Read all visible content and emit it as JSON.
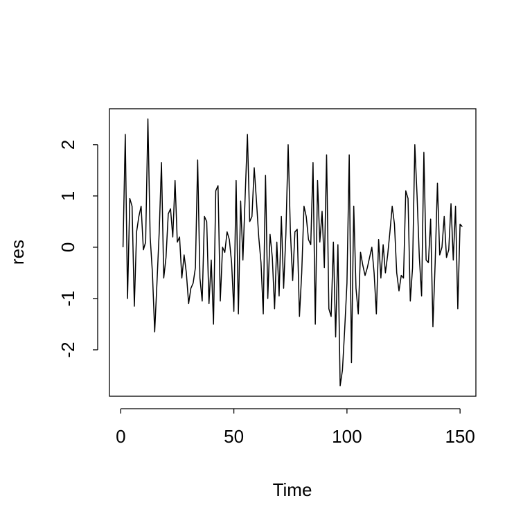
{
  "chart_data": {
    "type": "line",
    "xlabel": "Time",
    "ylabel": "res",
    "color": "#000000",
    "x": [
      1,
      2,
      3,
      4,
      5,
      6,
      7,
      8,
      9,
      10,
      11,
      12,
      13,
      14,
      15,
      16,
      17,
      18,
      19,
      20,
      21,
      22,
      23,
      24,
      25,
      26,
      27,
      28,
      29,
      30,
      31,
      32,
      33,
      34,
      35,
      36,
      37,
      38,
      39,
      40,
      41,
      42,
      43,
      44,
      45,
      46,
      47,
      48,
      49,
      50,
      51,
      52,
      53,
      54,
      55,
      56,
      57,
      58,
      59,
      60,
      61,
      62,
      63,
      64,
      65,
      66,
      67,
      68,
      69,
      70,
      71,
      72,
      73,
      74,
      75,
      76,
      77,
      78,
      79,
      80,
      81,
      82,
      83,
      84,
      85,
      86,
      87,
      88,
      89,
      90,
      91,
      92,
      93,
      94,
      95,
      96,
      97,
      98,
      99,
      100,
      101,
      102,
      103,
      104,
      105,
      106,
      107,
      108,
      109,
      110,
      111,
      112,
      113,
      114,
      115,
      116,
      117,
      118,
      119,
      120,
      121,
      122,
      123,
      124,
      125,
      126,
      127,
      128,
      129,
      130,
      131,
      132,
      133,
      134,
      135,
      136,
      137,
      138,
      139,
      140,
      141,
      142,
      143,
      144,
      145,
      146,
      147,
      148,
      149,
      150,
      151
    ],
    "values": [
      0,
      2.2,
      -1.0,
      0.95,
      0.8,
      -1.15,
      0.3,
      0.6,
      0.8,
      -0.05,
      0.1,
      2.5,
      0.2,
      -0.5,
      -1.65,
      -0.7,
      0.3,
      1.65,
      -0.6,
      -0.2,
      0.65,
      0.75,
      0.2,
      1.3,
      0.1,
      0.2,
      -0.6,
      -0.15,
      -0.5,
      -1.1,
      -0.8,
      -0.7,
      -0.4,
      1.7,
      -0.6,
      -1.05,
      0.6,
      0.5,
      -1.1,
      -0.25,
      -1.5,
      1.1,
      1.2,
      -1.05,
      0.0,
      -0.1,
      0.3,
      0.15,
      -0.3,
      -1.25,
      1.3,
      -1.3,
      0.9,
      -0.25,
      1.0,
      2.2,
      0.5,
      0.6,
      1.55,
      0.9,
      0.2,
      -0.3,
      -1.3,
      1.4,
      -1.0,
      0.25,
      -0.2,
      -1.2,
      0.1,
      -0.95,
      0.6,
      -0.8,
      0.25,
      2.0,
      0.3,
      -0.65,
      0.3,
      0.35,
      -1.35,
      -0.5,
      0.8,
      0.6,
      0.15,
      0.05,
      1.65,
      -1.5,
      1.3,
      0.1,
      0.7,
      -0.4,
      1.8,
      -1.2,
      -1.35,
      0.1,
      -1.75,
      0.05,
      -2.7,
      -2.4,
      -1.6,
      -0.7,
      1.8,
      -2.25,
      0.8,
      -0.8,
      -1.3,
      -0.1,
      -0.35,
      -0.55,
      -0.4,
      -0.2,
      0.0,
      -0.5,
      -1.3,
      0.15,
      -0.6,
      0.05,
      -0.5,
      -0.15,
      0.3,
      0.8,
      0.45,
      -0.5,
      -0.85,
      -0.55,
      -0.6,
      1.1,
      0.95,
      -1.05,
      -0.4,
      2.0,
      1.0,
      -0.2,
      -0.95,
      1.85,
      -0.25,
      -0.3,
      0.55,
      -1.55,
      -0.3,
      1.25,
      -0.15,
      0.0,
      0.6,
      -0.2,
      -0.05,
      0.85,
      -0.25,
      0.8,
      -1.2,
      0.45,
      0.4
    ],
    "xlim": [
      -5,
      157
    ],
    "ylim": [
      -2.905,
      2.7
    ],
    "xticks": [
      0,
      50,
      100,
      150
    ],
    "yticks": [
      -2,
      -1,
      0,
      1,
      2
    ]
  }
}
